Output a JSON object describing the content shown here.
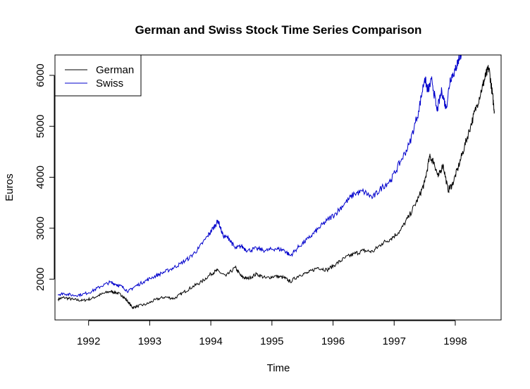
{
  "chart_data": {
    "type": "line",
    "title": "German and Swiss Stock Time Series Comparison",
    "xlabel": "Time",
    "ylabel": "Euros",
    "xlim": [
      1991.45,
      1998.75
    ],
    "ylim": [
      1200,
      6400
    ],
    "x_ticks": [
      1992,
      1993,
      1994,
      1995,
      1996,
      1997,
      1998
    ],
    "y_ticks": [
      2000,
      3000,
      4000,
      5000,
      6000
    ],
    "grid": false,
    "legend_position": "top-left",
    "series": [
      {
        "name": "German",
        "color": "#000000",
        "x": [
          1991.5,
          1991.6,
          1991.75,
          1991.9,
          1992.05,
          1992.2,
          1992.35,
          1992.45,
          1992.55,
          1992.65,
          1992.72,
          1992.8,
          1992.95,
          1993.1,
          1993.25,
          1993.4,
          1993.55,
          1993.7,
          1993.85,
          1994.0,
          1994.1,
          1994.25,
          1994.4,
          1994.5,
          1994.6,
          1994.75,
          1994.9,
          1995.05,
          1995.2,
          1995.3,
          1995.45,
          1995.6,
          1995.75,
          1995.9,
          1996.05,
          1996.2,
          1996.35,
          1996.5,
          1996.65,
          1996.8,
          1996.95,
          1997.1,
          1997.25,
          1997.4,
          1997.5,
          1997.58,
          1997.65,
          1997.72,
          1997.8,
          1997.88,
          1997.95,
          1998.05,
          1998.15,
          1998.25,
          1998.35,
          1998.45,
          1998.5,
          1998.55,
          1998.6,
          1998.64
        ],
        "values": [
          1610,
          1640,
          1600,
          1580,
          1620,
          1700,
          1760,
          1740,
          1680,
          1550,
          1440,
          1470,
          1510,
          1600,
          1650,
          1620,
          1740,
          1850,
          1950,
          2100,
          2170,
          2060,
          2230,
          2050,
          2010,
          2100,
          2020,
          2060,
          2030,
          1950,
          2080,
          2130,
          2230,
          2180,
          2300,
          2420,
          2500,
          2560,
          2540,
          2700,
          2800,
          2950,
          3250,
          3600,
          3900,
          4400,
          4300,
          4000,
          4250,
          3750,
          3850,
          4200,
          4600,
          5000,
          5400,
          5800,
          6000,
          6150,
          5700,
          5300
        ]
      },
      {
        "name": "Swiss",
        "color": "#0000cc",
        "x": [
          1991.5,
          1991.6,
          1991.75,
          1991.9,
          1992.05,
          1992.2,
          1992.35,
          1992.45,
          1992.55,
          1992.65,
          1992.75,
          1992.9,
          1993.05,
          1993.2,
          1993.35,
          1993.5,
          1993.65,
          1993.8,
          1993.95,
          1994.05,
          1994.12,
          1994.2,
          1994.3,
          1994.4,
          1994.5,
          1994.6,
          1994.75,
          1994.9,
          1995.05,
          1995.2,
          1995.3,
          1995.45,
          1995.6,
          1995.75,
          1995.9,
          1996.05,
          1996.2,
          1996.35,
          1996.5,
          1996.65,
          1996.8,
          1996.95,
          1997.1,
          1997.25,
          1997.4,
          1997.5,
          1997.55,
          1997.62,
          1997.7,
          1997.78,
          1997.85,
          1997.92,
          1998.0,
          1998.05,
          1998.1
        ],
        "values": [
          1700,
          1720,
          1680,
          1700,
          1760,
          1860,
          1940,
          1900,
          1850,
          1760,
          1850,
          1950,
          2040,
          2120,
          2200,
          2300,
          2420,
          2600,
          2850,
          3020,
          3150,
          2850,
          2800,
          2600,
          2650,
          2560,
          2600,
          2560,
          2600,
          2570,
          2460,
          2650,
          2800,
          2980,
          3150,
          3300,
          3500,
          3680,
          3720,
          3600,
          3800,
          3950,
          4300,
          4650,
          5300,
          5950,
          5700,
          5900,
          5300,
          5700,
          5350,
          5950,
          6100,
          6300,
          6450
        ]
      }
    ]
  }
}
